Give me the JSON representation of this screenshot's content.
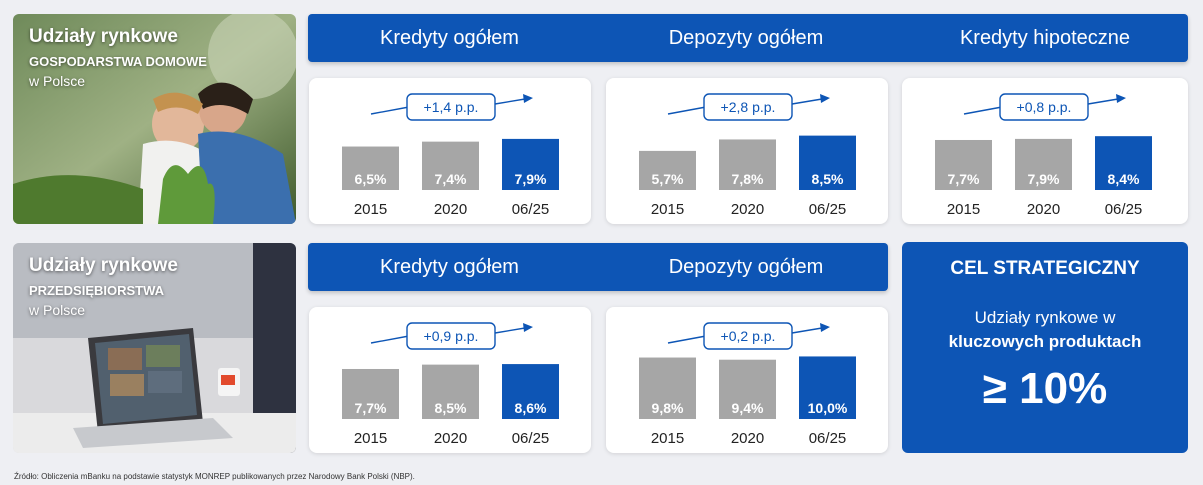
{
  "rows": [
    {
      "title": "Udziały rynkowe",
      "subtitle": "GOSPODARSTWA DOMOWE",
      "location": "w Polsce",
      "headers": [
        "Kredyty ogółem",
        "Depozyty ogółem",
        "Kredyty hipoteczne"
      ]
    },
    {
      "title": "Udziały rynkowe",
      "subtitle": "PRZEDSIĘBIORSTWA",
      "location": "w Polsce",
      "headers": [
        "Kredyty ogółem",
        "Depozyty ogółem"
      ]
    }
  ],
  "goal": {
    "title": "CEL STRATEGICZNY",
    "line1": "Udziały rynkowe w",
    "line2": "kluczowych produktach",
    "value": "≥ 10%"
  },
  "footer": "Źródło: Obliczenia mBanku na podstawie statystyk MONREP publikowanych przez Narodowy Bank Polski (NBP).",
  "colors": {
    "accent": "#0d55b5",
    "bar_past": "#a6a6a6",
    "bar_current": "#0d55b5"
  },
  "chart_data": [
    {
      "type": "bar",
      "group": "GOSPODARSTWA DOMOWE",
      "title": "Kredyty ogółem",
      "categories": [
        "2015",
        "2020",
        "06/25"
      ],
      "values": [
        6.5,
        7.4,
        7.9
      ],
      "labels": [
        "6,5%",
        "7,4%",
        "7,9%"
      ],
      "change": "+1,4 p.p."
    },
    {
      "type": "bar",
      "group": "GOSPODARSTWA DOMOWE",
      "title": "Depozyty ogółem",
      "categories": [
        "2015",
        "2020",
        "06/25"
      ],
      "values": [
        5.7,
        7.8,
        8.5
      ],
      "labels": [
        "5,7%",
        "7,8%",
        "8,5%"
      ],
      "change": "+2,8 p.p."
    },
    {
      "type": "bar",
      "group": "GOSPODARSTWA DOMOWE",
      "title": "Kredyty hipoteczne",
      "categories": [
        "2015",
        "2020",
        "06/25"
      ],
      "values": [
        7.7,
        7.9,
        8.4
      ],
      "labels": [
        "7,7%",
        "7,9%",
        "8,4%"
      ],
      "change": "+0,8 p.p."
    },
    {
      "type": "bar",
      "group": "PRZEDSIĘBIORSTWA",
      "title": "Kredyty ogółem",
      "categories": [
        "2015",
        "2020",
        "06/25"
      ],
      "values": [
        7.7,
        8.5,
        8.6
      ],
      "labels": [
        "7,7%",
        "8,5%",
        "8,6%"
      ],
      "change": "+0,9 p.p."
    },
    {
      "type": "bar",
      "group": "PRZEDSIĘBIORSTWA",
      "title": "Depozyty ogółem",
      "categories": [
        "2015",
        "2020",
        "06/25"
      ],
      "values": [
        9.8,
        9.4,
        10.0
      ],
      "labels": [
        "9,8%",
        "9,4%",
        "10,0%"
      ],
      "change": "+0,2 p.p."
    }
  ]
}
